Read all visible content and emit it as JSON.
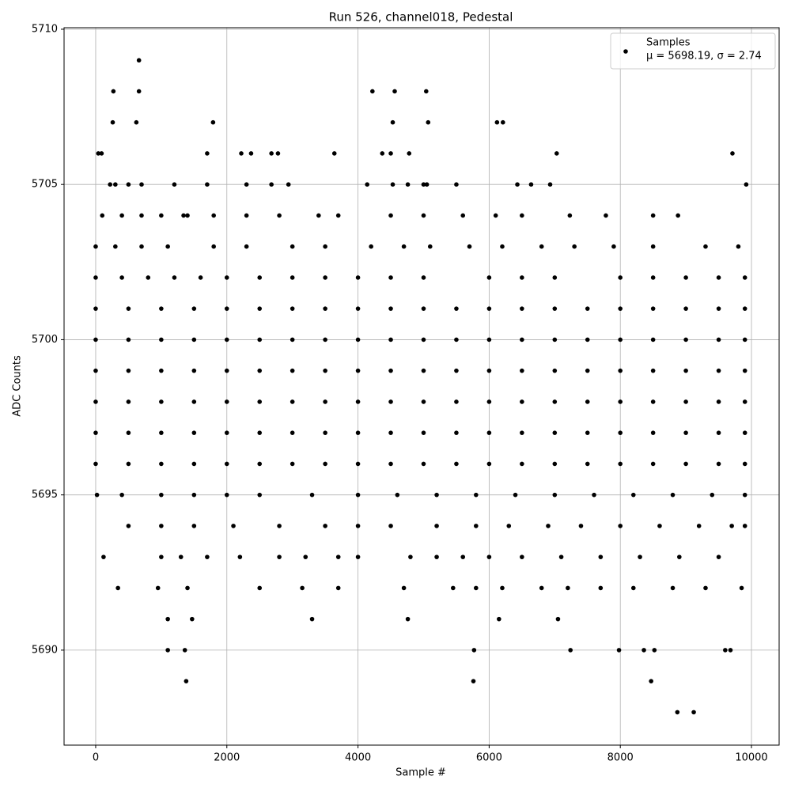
{
  "chart_data": {
    "type": "scatter",
    "title": "Run 526, channel018, Pedestal",
    "xlabel": "Sample #",
    "ylabel": "ADC Counts",
    "xlim": [
      -482,
      10422
    ],
    "ylim": [
      5686.94,
      5710.05
    ],
    "xticks": [
      0,
      2000,
      4000,
      6000,
      8000,
      10000
    ],
    "yticks": [
      5690,
      5695,
      5700,
      5705,
      5710
    ],
    "grid": true,
    "legend": "upper right",
    "annotation": "μ = 5698.19, σ = 2.74",
    "x": [
      0,
      500,
      1000,
      1500,
      2000,
      2500,
      3000,
      3500,
      4000,
      4500,
      5000,
      5500,
      6000,
      6500,
      7000,
      7500,
      8000,
      8500,
      9000,
      9500,
      9900,
      0,
      500,
      1000,
      1500,
      2000,
      2500,
      3000,
      3500,
      4000,
      4500,
      5000,
      5500,
      6000,
      6500,
      7000,
      7500,
      8000,
      8500,
      9000,
      9500,
      9900,
      0,
      500,
      1000,
      1500,
      2000,
      2500,
      3000,
      3500,
      4000,
      4500,
      5000,
      5500,
      6000,
      6500,
      7000,
      7500,
      8000,
      8500,
      9000,
      9500,
      9900,
      0,
      500,
      1000,
      1500,
      2000,
      2500,
      3000,
      3500,
      4000,
      4500,
      5000,
      5500,
      6000,
      6500,
      7000,
      7500,
      8000,
      8500,
      9000,
      9500,
      9900,
      0,
      500,
      1000,
      1500,
      2000,
      2500,
      3000,
      3500,
      4000,
      4500,
      5000,
      5500,
      6000,
      6500,
      7000,
      7500,
      8000,
      8500,
      9000,
      9500,
      9900,
      0,
      500,
      1000,
      1500,
      2000,
      2500,
      3000,
      3500,
      4000,
      4500,
      5000,
      5500,
      6000,
      6500,
      7000,
      7500,
      8000,
      8500,
      9000,
      9500,
      9900,
      0,
      400,
      800,
      1200,
      1600,
      2000,
      2500,
      3000,
      3500,
      4000,
      4500,
      5000,
      6000,
      6500,
      7000,
      8000,
      8500,
      9000,
      9500,
      9900,
      0,
      300,
      700,
      1100,
      1800,
      2300,
      3000,
      3500,
      4200,
      4700,
      5100,
      5700,
      6200,
      6800,
      7300,
      7900,
      8500,
      9300,
      9800,
      100,
      400,
      700,
      1000,
      1400,
      1800,
      2300,
      2800,
      3400,
      3700,
      4500,
      5000,
      5600,
      6100,
      6500,
      20,
      400,
      1000,
      1500,
      2000,
      2500,
      3300,
      4000,
      4600,
      5200,
      5800,
      6400,
      7000,
      7600,
      8200,
      8800,
      9400,
      9900,
      500,
      1000,
      1500,
      2100,
      2800,
      3500,
      4000,
      4500,
      5200,
      5800,
      6300,
      6900,
      7400,
      8000,
      8600,
      9200,
      9700,
      9900,
      1000,
      1300,
      1700,
      2200,
      2800,
      3200,
      3700,
      4000,
      4800,
      5200,
      5600,
      6000,
      6500,
      7100,
      7700,
      8300,
      8900,
      9500,
      950,
      1400,
      2500,
      3150,
      3700,
      4700,
      5450,
      5800,
      6200,
      6800,
      7200,
      7700,
      8200,
      8800,
      9300,
      9850,
      220,
      300,
      500,
      700,
      1700,
      2300,
      4530,
      4760,
      5000,
      660,
      270,
      660,
      4220,
      4560,
      5040,
      260,
      620,
      1790,
      4530,
      5070,
      6120,
      6210,
      40,
      90,
      1700,
      2220,
      2370,
      2680,
      2780,
      3640,
      4370,
      4500,
      4780,
      7030,
      9710,
      1200,
      2680,
      2940,
      4140,
      5050,
      5500,
      6430,
      6640,
      6930,
      9920,
      8500,
      8880,
      7230,
      7780,
      1340,
      120,
      340,
      1100,
      1360,
      1380,
      5770,
      5760,
      7240,
      7980,
      8360,
      8520,
      9600,
      9680,
      8470,
      8870,
      9120,
      3300,
      1100,
      1470,
      4760,
      6150,
      7050
    ],
    "series": [
      {
        "name": "Samples",
        "color": "#000000",
        "values": [
          5696,
          5696,
          5696,
          5696,
          5696,
          5696,
          5696,
          5696,
          5696,
          5696,
          5696,
          5696,
          5696,
          5696,
          5696,
          5696,
          5696,
          5696,
          5696,
          5696,
          5696,
          5697,
          5697,
          5697,
          5697,
          5697,
          5697,
          5697,
          5697,
          5697,
          5697,
          5697,
          5697,
          5697,
          5697,
          5697,
          5697,
          5697,
          5697,
          5697,
          5697,
          5697,
          5698,
          5698,
          5698,
          5698,
          5698,
          5698,
          5698,
          5698,
          5698,
          5698,
          5698,
          5698,
          5698,
          5698,
          5698,
          5698,
          5698,
          5698,
          5698,
          5698,
          5698,
          5699,
          5699,
          5699,
          5699,
          5699,
          5699,
          5699,
          5699,
          5699,
          5699,
          5699,
          5699,
          5699,
          5699,
          5699,
          5699,
          5699,
          5699,
          5699,
          5699,
          5699,
          5700,
          5700,
          5700,
          5700,
          5700,
          5700,
          5700,
          5700,
          5700,
          5700,
          5700,
          5700,
          5700,
          5700,
          5700,
          5700,
          5700,
          5700,
          5700,
          5700,
          5700,
          5701,
          5701,
          5701,
          5701,
          5701,
          5701,
          5701,
          5701,
          5701,
          5701,
          5701,
          5701,
          5701,
          5701,
          5701,
          5701,
          5701,
          5701,
          5701,
          5701,
          5701,
          5702,
          5702,
          5702,
          5702,
          5702,
          5702,
          5702,
          5702,
          5702,
          5702,
          5702,
          5702,
          5702,
          5702,
          5702,
          5702,
          5702,
          5702,
          5702,
          5702,
          5703,
          5703,
          5703,
          5703,
          5703,
          5703,
          5703,
          5703,
          5703,
          5703,
          5703,
          5703,
          5703,
          5703,
          5703,
          5703,
          5703,
          5703,
          5703,
          5704,
          5704,
          5704,
          5704,
          5704,
          5704,
          5704,
          5704,
          5704,
          5704,
          5704,
          5704,
          5704,
          5704,
          5704,
          5695,
          5695,
          5695,
          5695,
          5695,
          5695,
          5695,
          5695,
          5695,
          5695,
          5695,
          5695,
          5695,
          5695,
          5695,
          5695,
          5695,
          5695,
          5694,
          5694,
          5694,
          5694,
          5694,
          5694,
          5694,
          5694,
          5694,
          5694,
          5694,
          5694,
          5694,
          5694,
          5694,
          5694,
          5694,
          5694,
          5693,
          5693,
          5693,
          5693,
          5693,
          5693,
          5693,
          5693,
          5693,
          5693,
          5693,
          5693,
          5693,
          5693,
          5693,
          5693,
          5693,
          5693,
          5692,
          5692,
          5692,
          5692,
          5692,
          5692,
          5692,
          5692,
          5692,
          5692,
          5692,
          5692,
          5692,
          5692,
          5692,
          5692,
          5705,
          5705,
          5705,
          5705,
          5705,
          5705,
          5705,
          5705,
          5705,
          5709,
          5708,
          5708,
          5708,
          5708,
          5708,
          5707,
          5707,
          5707,
          5707,
          5707,
          5707,
          5707,
          5706,
          5706,
          5706,
          5706,
          5706,
          5706,
          5706,
          5706,
          5706,
          5706,
          5706,
          5706,
          5706,
          5705,
          5705,
          5705,
          5705,
          5705,
          5705,
          5705,
          5705,
          5705,
          5705,
          5704,
          5704,
          5704,
          5704,
          5704,
          5693,
          5692,
          5690,
          5690,
          5689,
          5690,
          5689,
          5690,
          5690,
          5690,
          5690,
          5690,
          5690,
          5689,
          5688,
          5688,
          5691,
          5691,
          5691,
          5691,
          5691,
          5691
        ]
      }
    ]
  }
}
